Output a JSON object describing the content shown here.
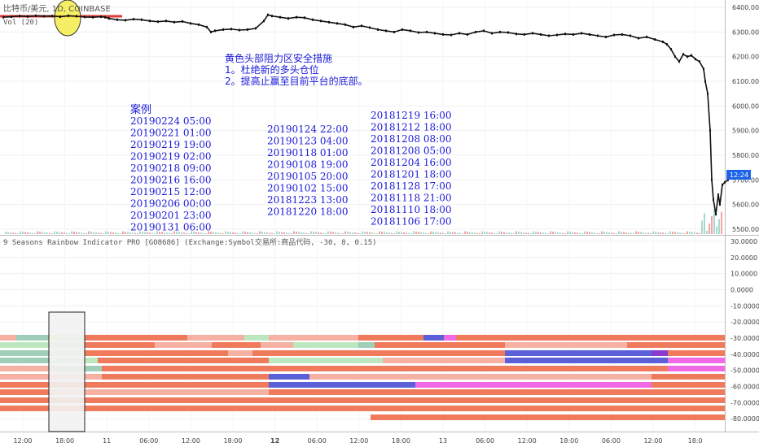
{
  "header": {
    "symbol": "比特币/美元, 1D, COINBASE",
    "volume_label": "Vol (20)"
  },
  "annotation": {
    "heading": "黄色头部阻力区安全措施",
    "line1": "1。杜绝新的多头仓位",
    "line2": "2。提高止赢至目前平台的底部。"
  },
  "cases": {
    "title": "案例",
    "col1": [
      "20190224 05:00",
      "20190221 01:00",
      "20190219 19:00",
      "20190219 02:00",
      "20190218 09:00",
      "20190216 16:00",
      "20190215 12:00",
      "20190206 00:00",
      "20190201 23:00",
      "20190131 06:00"
    ],
    "col2": [
      "20190124 22:00",
      "20190123 04:00",
      "20190118 01:00",
      "20190108 19:00",
      "20190105 20:00",
      "20190102 15:00",
      "20181223 13:00",
      "20181220 18:00"
    ],
    "col3": [
      "20181219 16:00",
      "20181212 18:00",
      "20181208 08:00",
      "20181208 05:00",
      "20181204 16:00",
      "20181201 18:00",
      "20181128 17:00",
      "20181118 21:00",
      "20181110 18:00",
      "20181106 17:00"
    ]
  },
  "indicator": {
    "title": "9 Seasons Rainbow Indicator PRO [GO8686] (Exchange:Symbol交易所:商品代码, -30, 8, 0.15)"
  },
  "current_price_label": "12:24",
  "chart_data": [
    {
      "type": "line",
      "name": "price",
      "yticks": [
        "6400.00",
        "6300.00",
        "6200.00",
        "6100.00",
        "6000.00",
        "5900.00",
        "5800.00",
        "5700.00",
        "5600.00",
        "5500.00"
      ],
      "ylim": [
        5480,
        6430
      ],
      "x": [
        0,
        10,
        20,
        30,
        40,
        50,
        60,
        70,
        80,
        90,
        100,
        110,
        120,
        125,
        130,
        140,
        150,
        160,
        170,
        180,
        190,
        200,
        210,
        220,
        230,
        240,
        250,
        255,
        260,
        270,
        280,
        290,
        300,
        310,
        320,
        325,
        330,
        340,
        350,
        360,
        370,
        380,
        390,
        400,
        410,
        420,
        430,
        440,
        450,
        460,
        470,
        480,
        490,
        500,
        510,
        520,
        530,
        540,
        550,
        560,
        570,
        580,
        590,
        600,
        610,
        620,
        630,
        640,
        650,
        660,
        670,
        680,
        690,
        700,
        710,
        720,
        730,
        740,
        750,
        760,
        770,
        780,
        790,
        800,
        810,
        815,
        820,
        825,
        830,
        835,
        840,
        845,
        850,
        855,
        860,
        862,
        865,
        868,
        870,
        872,
        875,
        878,
        880,
        883,
        886,
        890
      ],
      "values": [
        6360,
        6362,
        6365,
        6363,
        6366,
        6364,
        6365,
        6362,
        6366,
        6364,
        6361,
        6360,
        6362,
        6360,
        6355,
        6350,
        6348,
        6352,
        6350,
        6345,
        6342,
        6345,
        6340,
        6343,
        6335,
        6330,
        6320,
        6300,
        6305,
        6310,
        6312,
        6308,
        6310,
        6315,
        6345,
        6370,
        6365,
        6360,
        6355,
        6360,
        6358,
        6350,
        6345,
        6340,
        6335,
        6330,
        6320,
        6325,
        6318,
        6310,
        6305,
        6300,
        6310,
        6305,
        6298,
        6300,
        6295,
        6290,
        6288,
        6295,
        6290,
        6300,
        6305,
        6295,
        6300,
        6298,
        6292,
        6290,
        6295,
        6290,
        6285,
        6288,
        6292,
        6290,
        6295,
        6290,
        6285,
        6280,
        6288,
        6290,
        6285,
        6275,
        6280,
        6270,
        6260,
        6250,
        6230,
        6200,
        6180,
        6210,
        6200,
        6205,
        6190,
        6180,
        6150,
        6100,
        6050,
        5900,
        5700,
        5620,
        5560,
        5640,
        5600,
        5680,
        5690,
        5700
      ]
    },
    {
      "type": "bar",
      "name": "rainbow-indicator",
      "yticks": [
        "30.0000",
        "20.0000",
        "10.0000",
        "0.0000",
        "-10.0000",
        "-20.0000",
        "-30.0000",
        "-40.0000",
        "-50.0000",
        "-60.0000",
        "-70.0000",
        "-80.0000"
      ],
      "ylim": [
        -88,
        33
      ]
    }
  ],
  "x_axis": {
    "ticks": [
      {
        "label": "12:00",
        "bold": false
      },
      {
        "label": "18:00",
        "bold": false
      },
      {
        "label": "11",
        "bold": false
      },
      {
        "label": "06:00",
        "bold": false
      },
      {
        "label": "12:00",
        "bold": false
      },
      {
        "label": "18:00",
        "bold": false
      },
      {
        "label": "12",
        "bold": true
      },
      {
        "label": "06:00",
        "bold": false
      },
      {
        "label": "12:00",
        "bold": false
      },
      {
        "label": "18:00",
        "bold": false
      },
      {
        "label": "13",
        "bold": false
      },
      {
        "label": "06:00",
        "bold": false
      },
      {
        "label": "12:00",
        "bold": false
      },
      {
        "label": "18:00",
        "bold": false
      },
      {
        "label": "06:00",
        "bold": false
      },
      {
        "label": "12:00",
        "bold": false
      },
      {
        "label": "18:0",
        "bold": false
      }
    ]
  },
  "colors": {
    "band_orange": "#ef7a5c",
    "band_salmon": "#f6b1a2",
    "band_green": "#bde8bf",
    "band_teal": "#9fcfb8",
    "band_blue": "#5b5fd8",
    "band_pink": "#f06ae6",
    "band_purple": "#8a3ad0",
    "price_line": "#111111",
    "resistance": "#e03a3a",
    "ellipse": "#f5ec4a",
    "annotation_text": "#1a1adb",
    "last_price_bg": "#1e62e8"
  }
}
